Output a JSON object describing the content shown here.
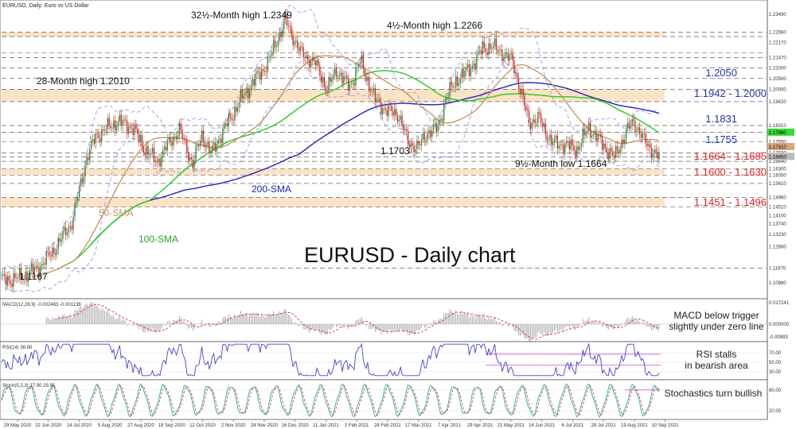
{
  "title": "EURUSD, Daily: Euro vs US Dollar",
  "colors": {
    "zone": "#fbe3c8",
    "sma50": "#c8905a",
    "sma100": "#22cc22",
    "sma200": "#2222bb",
    "bollinger": "#9a9af0",
    "bull": "#3a7d3a",
    "bear": "#cc2222",
    "level_blue": "#2233aa",
    "level_red": "#dd2222",
    "macd_hist": "#9a9a9a",
    "macd_signal": "#dd3333",
    "rsi": "#4444cc",
    "stoch_k": "#22aaaa",
    "stoch_d": "#cc3333",
    "violet": "#cc55cc"
  },
  "main_label": "EURUSD - Daily chart",
  "annotations": {
    "high_2349": "32½-Month high 1.2349",
    "high_2266": "4½-Month high 1.2266",
    "high_2010": "28-Month high 1.2010",
    "low_1167": "1.1167",
    "low_1703": "1.1703",
    "low_1664": "9½-Month low 1.1664",
    "sma50": "50-SMA",
    "sma100": "100-SMA",
    "sma200": "200-SMA"
  },
  "levels": [
    {
      "label": "1.2050",
      "color": "blue"
    },
    {
      "label": "1.1942 - 1.2000",
      "color": "blue"
    },
    {
      "label": "1.1831",
      "color": "blue"
    },
    {
      "label": "1.1755",
      "color": "blue"
    },
    {
      "label": "1.1664 - 1.1685",
      "color": "red"
    },
    {
      "label": "1.1600 - 1.1630",
      "color": "red"
    },
    {
      "label": "1.1451 - 1.1496",
      "color": "red"
    }
  ],
  "panels": {
    "macd": {
      "label": "MACD(12,26,9) -0.002463 -0.001138",
      "note_1": "MACD below trigger",
      "note_2": "slightly under zero line"
    },
    "rsi": {
      "label": "RSI(14) 36.90",
      "note_1": "RSI stalls",
      "note_2": "in bearish area"
    },
    "stoch": {
      "label": "Stoch(5,3,3) 37.90 29.95",
      "note_1": "Stochastics turn bullish"
    }
  },
  "chart_data": {
    "type": "candlestick",
    "symbol": "EURUSD",
    "timeframe": "Daily",
    "price_axis_ticks": [
      "1.23490",
      "1.22660",
      "1.22170",
      "1.21470",
      "1.21000",
      "1.20500",
      "1.20000",
      "1.19420",
      "1.18310",
      "1.18000",
      "1.17550",
      "1.17030",
      "1.16850",
      "1.16640",
      "1.16300",
      "1.16000",
      "1.15610",
      "1.14960",
      "1.14510",
      "1.14100",
      "1.13740",
      "1.13230",
      "1.12660",
      "1.11670",
      "1.10980"
    ],
    "price_axis_range": [
      1.105,
      1.236
    ],
    "current_price": "1.16850",
    "current_price_tag": "1.16850",
    "sma100_tag": "1.17980",
    "sma50_tag": "1.17310",
    "date_labels": [
      "29 May 2020",
      "22 Jun 2020",
      "14 Jul 2020",
      "5 Aug 2020",
      "27 Aug 2020",
      "18 Sep 2020",
      "12 Oct 2020",
      "2 Nov 2020",
      "24 Nov 2020",
      "16 Dec 2020",
      "11 Jan 2021",
      "2 Feb 2021",
      "24 Feb 2021",
      "17 Mar 2021",
      "7 Apr 2021",
      "29 Apr 2021",
      "21 May 2021",
      "14 Jun 2021",
      "6 Jul 2021",
      "28 Jul 2021",
      "19 Aug 2021",
      "10 Sep 2021"
    ],
    "close_anchors": [
      [
        0,
        1.111
      ],
      [
        12,
        1.112
      ],
      [
        25,
        1.117
      ],
      [
        35,
        1.125
      ],
      [
        47,
        1.138
      ],
      [
        57,
        1.168
      ],
      [
        63,
        1.178
      ],
      [
        73,
        1.183
      ],
      [
        78,
        1.185
      ],
      [
        88,
        1.182
      ],
      [
        95,
        1.173
      ],
      [
        104,
        1.166
      ],
      [
        112,
        1.175
      ],
      [
        119,
        1.181
      ],
      [
        128,
        1.165
      ],
      [
        134,
        1.179
      ],
      [
        140,
        1.17
      ],
      [
        151,
        1.184
      ],
      [
        160,
        1.195
      ],
      [
        168,
        1.203
      ],
      [
        178,
        1.212
      ],
      [
        185,
        1.224
      ],
      [
        190,
        1.232
      ],
      [
        194,
        1.226
      ],
      [
        200,
        1.217
      ],
      [
        210,
        1.212
      ],
      [
        218,
        1.2
      ],
      [
        224,
        1.209
      ],
      [
        233,
        1.201
      ],
      [
        240,
        1.213
      ],
      [
        250,
        1.195
      ],
      [
        258,
        1.19
      ],
      [
        266,
        1.188
      ],
      [
        272,
        1.175
      ],
      [
        279,
        1.173
      ],
      [
        285,
        1.18
      ],
      [
        292,
        1.182
      ],
      [
        297,
        1.195
      ],
      [
        304,
        1.204
      ],
      [
        311,
        1.208
      ],
      [
        317,
        1.213
      ],
      [
        322,
        1.219
      ],
      [
        328,
        1.22
      ],
      [
        335,
        1.217
      ],
      [
        342,
        1.213
      ],
      [
        347,
        1.2
      ],
      [
        353,
        1.185
      ],
      [
        360,
        1.186
      ],
      [
        368,
        1.175
      ],
      [
        378,
        1.174
      ],
      [
        385,
        1.172
      ],
      [
        393,
        1.182
      ],
      [
        404,
        1.173
      ],
      [
        410,
        1.168
      ],
      [
        418,
        1.18
      ],
      [
        423,
        1.185
      ],
      [
        430,
        1.176
      ],
      [
        440,
        1.168
      ]
    ]
  }
}
